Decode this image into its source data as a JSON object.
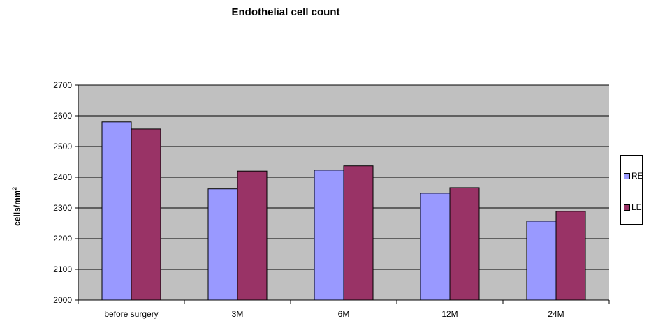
{
  "chart_data": {
    "type": "bar",
    "title": "Endothelial cell count",
    "ylabel": "cells/mm",
    "ylabel_sup": "2",
    "categories": [
      "before surgery",
      "3M",
      "6M",
      "12M",
      "24M"
    ],
    "series": [
      {
        "name": "RE",
        "color": "#9999ff",
        "values": [
          2580,
          2362,
          2423,
          2348,
          2257
        ]
      },
      {
        "name": "LE",
        "color": "#993366",
        "values": [
          2557,
          2420,
          2437,
          2366,
          2289
        ]
      }
    ],
    "ylim": [
      2000,
      2700
    ],
    "yticks": [
      2000,
      2100,
      2200,
      2300,
      2400,
      2500,
      2600,
      2700
    ],
    "grid": true,
    "plot_background": "#c0c0c0",
    "legend_position": "right"
  }
}
